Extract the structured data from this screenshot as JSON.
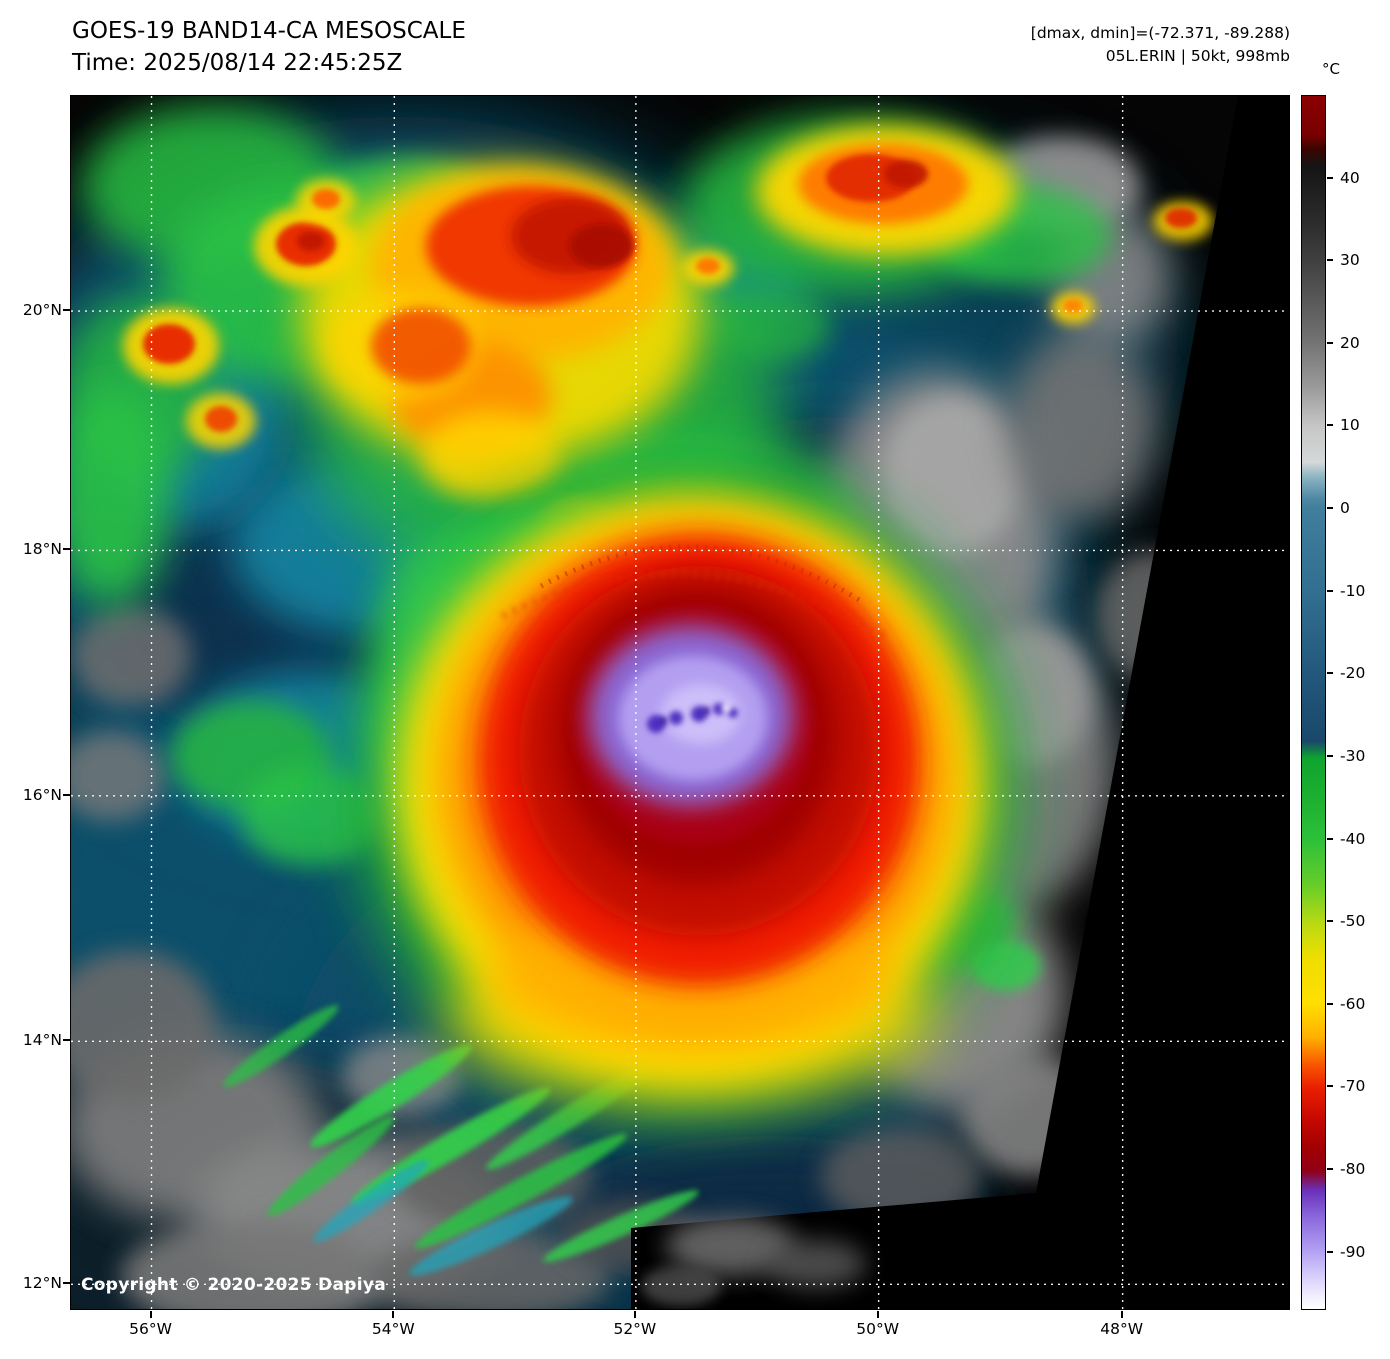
{
  "header": {
    "title": "GOES-19 BAND14-CA MESOSCALE",
    "time": "Time: 2025/08/14 22:45:25Z"
  },
  "annotations": {
    "range": "[dmax, dmin]=(-72.371, -89.288)",
    "storm": "05L.ERIN | 50kt, 998mb"
  },
  "colorbar": {
    "unit": "°C",
    "ticks": [
      {
        "label": "40",
        "pct": 6.8
      },
      {
        "label": "30",
        "pct": 13.6
      },
      {
        "label": "20",
        "pct": 20.4
      },
      {
        "label": "10",
        "pct": 27.2
      },
      {
        "label": "0",
        "pct": 34.0
      },
      {
        "label": "-10",
        "pct": 40.8
      },
      {
        "label": "-20",
        "pct": 47.6
      },
      {
        "label": "-30",
        "pct": 54.4
      },
      {
        "label": "-40",
        "pct": 61.2
      },
      {
        "label": "-50",
        "pct": 68.0
      },
      {
        "label": "-60",
        "pct": 74.8
      },
      {
        "label": "-70",
        "pct": 81.6
      },
      {
        "label": "-80",
        "pct": 88.4
      },
      {
        "label": "-90",
        "pct": 95.2
      }
    ]
  },
  "axes": {
    "lat": [
      {
        "label": "20°N",
        "pct": 17.7
      },
      {
        "label": "18°N",
        "pct": 37.4
      },
      {
        "label": "16°N",
        "pct": 57.6
      },
      {
        "label": "14°N",
        "pct": 77.8
      },
      {
        "label": "12°N",
        "pct": 97.8
      }
    ],
    "lon": [
      {
        "label": "56°W",
        "pct": 6.6
      },
      {
        "label": "54°W",
        "pct": 26.5
      },
      {
        "label": "52°W",
        "pct": 46.3
      },
      {
        "label": "50°W",
        "pct": 66.2
      },
      {
        "label": "48°W",
        "pct": 86.2
      }
    ]
  },
  "copyright": "Copyright © 2020-2025 Dapiya",
  "palette": {
    "coldest_white": "#ffffff",
    "lavender": "#b2a0f2",
    "violet": "#6a30b8",
    "dark_red": "#a30000",
    "red": "#ea1e00",
    "orange": "#ff9000",
    "yellow": "#ffdf00",
    "green": "#2cc03a",
    "blue": "#23587c",
    "steel_blue": "#4e88a4",
    "warm_gray": "#9a9a9a",
    "hot_dark_red": "#8b0000"
  }
}
